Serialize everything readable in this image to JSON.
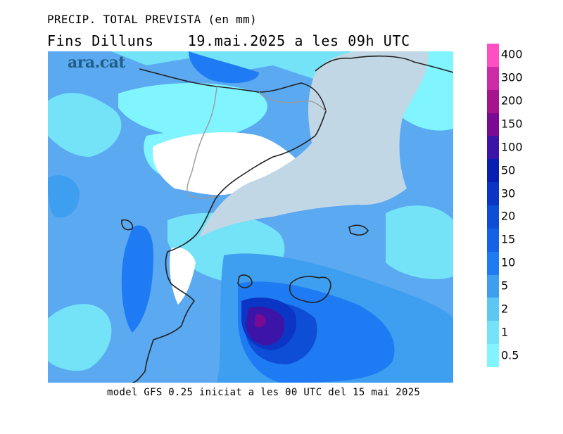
{
  "header": {
    "title_line1": "PRECIP. TOTAL PREVISTA (en mm)",
    "title_line2_left": "Fins Dilluns",
    "title_line2_right": "19.mai.2025 a les 09h UTC"
  },
  "footer": {
    "model_text": "model GFS 0.25 iniciat a les 00 UTC del 15 mai 2025"
  },
  "map": {
    "logo_text": "ara.cat"
  },
  "legend": {
    "unit": "mm",
    "levels": [
      "0.5",
      "1",
      "2",
      "5",
      "10",
      "15",
      "20",
      "30",
      "50",
      "100",
      "150",
      "200",
      "300",
      "400"
    ],
    "colors": {
      "0.5": "#80f5ff",
      "1": "#74e2f7",
      "2": "#5cc7f2",
      "5": "#3e9ff0",
      "10": "#1f7bf3",
      "15": "#1463e6",
      "20": "#0e4dd6",
      "30": "#0b35c4",
      "50": "#0820b1",
      "100": "#3d14a8",
      "150": "#7a0a93",
      "200": "#a6138e",
      "300": "#cd2aa8",
      "400": "#ff4fc2"
    }
  }
}
